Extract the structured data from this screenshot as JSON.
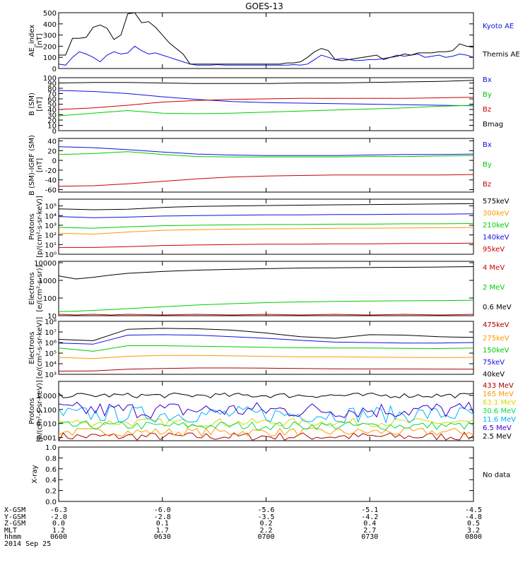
{
  "title": "GOES-13",
  "date": "2014 Sep 25",
  "colors": {
    "black": "#000000",
    "blue": "#1010e0",
    "green": "#00cc00",
    "red": "#cc0000",
    "orange": "#ff9900",
    "cyan": "#00b0ff",
    "yellow": "#d8d800",
    "lime": "#00dd44",
    "darkred": "#aa0000",
    "violet": "#3300cc"
  },
  "x_ticks": [
    0,
    30,
    60,
    90,
    120
  ],
  "footer": {
    "rows": [
      {
        "label": "X-GSM",
        "values": [
          "-6.3",
          "-6.0",
          "-5.6",
          "-5.1",
          "-4.5"
        ]
      },
      {
        "label": "Y-GSM",
        "values": [
          "-2.0",
          "-2.8",
          "-3.5",
          "-4.2",
          "-4.8"
        ]
      },
      {
        "label": "Z-GSM",
        "values": [
          "0.0",
          "0.1",
          "0.2",
          "0.4",
          "0.5"
        ]
      },
      {
        "label": "MLT",
        "values": [
          "1.2",
          "1.7",
          "2.2",
          "2.7",
          "3.2"
        ]
      },
      {
        "label": "hhmm",
        "values": [
          "0600",
          "0630",
          "0700",
          "0730",
          "0800"
        ]
      }
    ]
  },
  "chart_data": [
    {
      "type": "line",
      "ylabel": "AE_index [nT]",
      "scale": "linear",
      "ylim": [
        0,
        500
      ],
      "yticks": [
        0,
        100,
        200,
        300,
        400,
        500
      ],
      "ytick_labels": [
        "0",
        "100",
        "200",
        "300",
        "400",
        "500"
      ],
      "x": [
        0,
        2,
        4,
        6,
        8,
        10,
        12,
        14,
        16,
        18,
        20,
        22,
        24,
        26,
        28,
        30,
        32,
        34,
        36,
        38,
        40,
        42,
        44,
        46,
        48,
        50,
        52,
        54,
        56,
        58,
        60,
        62,
        64,
        66,
        68,
        70,
        72,
        74,
        76,
        78,
        80,
        82,
        84,
        86,
        88,
        90,
        92,
        94,
        96,
        98,
        100,
        102,
        104,
        106,
        108,
        110,
        112,
        114,
        116,
        118,
        120
      ],
      "series": [
        {
          "name": "Kyoto AE",
          "color": "blue",
          "values": [
            40,
            30,
            100,
            150,
            130,
            100,
            60,
            120,
            150,
            130,
            140,
            200,
            160,
            130,
            140,
            120,
            100,
            80,
            60,
            40,
            30,
            30,
            30,
            35,
            30,
            30,
            30,
            30,
            30,
            30,
            30,
            30,
            30,
            30,
            35,
            30,
            40,
            80,
            120,
            100,
            80,
            90,
            80,
            70,
            75,
            80,
            80,
            90,
            100,
            120,
            110,
            120,
            130,
            100,
            110,
            120,
            100,
            110,
            130,
            120,
            100
          ]
        },
        {
          "name": "Themis AE",
          "color": "black",
          "values": [
            120,
            120,
            270,
            270,
            280,
            370,
            390,
            360,
            260,
            300,
            490,
            500,
            410,
            420,
            370,
            300,
            230,
            180,
            130,
            40,
            40,
            40,
            40,
            40,
            40,
            40,
            40,
            40,
            40,
            40,
            40,
            40,
            40,
            50,
            50,
            60,
            100,
            150,
            180,
            160,
            80,
            70,
            80,
            90,
            100,
            110,
            120,
            80,
            100,
            110,
            130,
            120,
            140,
            140,
            140,
            150,
            150,
            160,
            220,
            200,
            190
          ]
        }
      ]
    },
    {
      "type": "line",
      "ylabel": "B (SM) [nT]",
      "scale": "linear",
      "ylim": [
        0,
        100
      ],
      "yticks": [
        0,
        10,
        20,
        30,
        40,
        50,
        60,
        70,
        80,
        90,
        100
      ],
      "ytick_labels": [
        "0",
        "10",
        "20",
        "30",
        "40",
        "50",
        "60",
        "70",
        "80",
        "90",
        "100"
      ],
      "x": [
        0,
        10,
        20,
        30,
        40,
        50,
        60,
        70,
        80,
        90,
        100,
        110,
        120
      ],
      "series": [
        {
          "name": "Bx",
          "color": "blue",
          "values": [
            76,
            74,
            70,
            64,
            59,
            55,
            53,
            52,
            51,
            50,
            49,
            48,
            47
          ]
        },
        {
          "name": "By",
          "color": "green",
          "values": [
            28,
            33,
            38,
            33,
            32,
            33,
            35,
            37,
            39,
            41,
            43,
            46,
            48
          ]
        },
        {
          "name": "Bz",
          "color": "red",
          "values": [
            40,
            43,
            48,
            54,
            57,
            59,
            60,
            61,
            61,
            61,
            61,
            62,
            63
          ]
        },
        {
          "name": "Bmag",
          "color": "black",
          "values": [
            90,
            91,
            91,
            90,
            89,
            89,
            89,
            90,
            90,
            91,
            92,
            93,
            95
          ]
        }
      ]
    },
    {
      "type": "line",
      "ylabel": "B (SM)-IGRF (SM) [nT]",
      "scale": "linear",
      "ylim": [
        -65,
        45
      ],
      "yticks": [
        -60,
        -40,
        -20,
        0,
        20,
        40
      ],
      "ytick_labels": [
        "-60",
        "-40",
        "-20",
        "0",
        "20",
        "40"
      ],
      "x": [
        0,
        10,
        20,
        30,
        40,
        50,
        60,
        70,
        80,
        90,
        100,
        110,
        120
      ],
      "series": [
        {
          "name": "Bx",
          "color": "blue",
          "values": [
            28,
            26,
            22,
            17,
            13,
            11,
            10,
            10,
            10,
            11,
            12,
            12,
            13
          ]
        },
        {
          "name": "By",
          "color": "green",
          "values": [
            12,
            14,
            18,
            12,
            8,
            7,
            7,
            7,
            7,
            8,
            8,
            9,
            10
          ]
        },
        {
          "name": "Bz",
          "color": "red",
          "values": [
            -53,
            -52,
            -48,
            -43,
            -38,
            -34,
            -32,
            -31,
            -30,
            -30,
            -30,
            -30,
            -29
          ]
        }
      ]
    },
    {
      "type": "line",
      "ylabel": "Protons [p/(cm²-s-sr-keV)]",
      "scale": "log",
      "ylim": [
        1,
        500000
      ],
      "yticks": [
        1,
        10,
        100,
        1000,
        10000,
        100000
      ],
      "ytick_labels": [
        "10⁰",
        "10¹",
        "10²",
        "10³",
        "10⁴",
        "10⁵"
      ],
      "x": [
        0,
        10,
        20,
        30,
        40,
        50,
        60,
        70,
        80,
        90,
        100,
        110,
        120
      ],
      "series": [
        {
          "name": "575keV",
          "color": "black",
          "values": [
            50000,
            40000,
            45000,
            70000,
            90000,
            100000,
            110000,
            120000,
            130000,
            140000,
            150000,
            160000,
            170000
          ]
        },
        {
          "name": "300keV",
          "color": "orange",
          "values": [
            150,
            120,
            200,
            300,
            350,
            400,
            420,
            450,
            480,
            500,
            520,
            550,
            600
          ]
        },
        {
          "name": "210keV",
          "color": "green",
          "values": [
            600,
            500,
            700,
            900,
            1000,
            1100,
            1200,
            1200,
            1300,
            1300,
            1400,
            1400,
            1500
          ]
        },
        {
          "name": "140keV",
          "color": "blue",
          "values": [
            8000,
            6000,
            7000,
            9000,
            10000,
            11000,
            12000,
            12000,
            13000,
            13000,
            14000,
            14000,
            15000
          ]
        },
        {
          "name": "95keV",
          "color": "red",
          "values": [
            5,
            5,
            6,
            8,
            9,
            10,
            11,
            11,
            12,
            12,
            13,
            13,
            14
          ]
        }
      ]
    },
    {
      "type": "line",
      "ylabel": "Electrons [e/(cm²-s-sr)]",
      "scale": "log",
      "ylim": [
        10,
        12000
      ],
      "yticks": [
        10,
        100,
        1000,
        10000
      ],
      "ytick_labels": [
        "10",
        "100",
        "1000",
        "10000"
      ],
      "x": [
        0,
        5,
        10,
        15,
        20,
        30,
        40,
        50,
        60,
        70,
        80,
        90,
        100,
        110,
        120
      ],
      "series": [
        {
          "name": "4 MeV",
          "color": "red",
          "values": [
            12,
            11,
            12,
            11,
            12,
            11,
            12,
            11,
            12,
            11,
            12,
            11,
            12,
            11,
            12
          ]
        },
        {
          "name": "2 MeV",
          "color": "green",
          "values": [
            17,
            18,
            20,
            22,
            25,
            32,
            40,
            48,
            55,
            60,
            65,
            68,
            70,
            72,
            75
          ]
        },
        {
          "name": "0.6 MeV",
          "color": "black",
          "values": [
            1800,
            1200,
            1500,
            2000,
            2500,
            3200,
            3800,
            4200,
            4600,
            5000,
            5200,
            5400,
            5500,
            5700,
            6000
          ]
        }
      ]
    },
    {
      "type": "line",
      "ylabel": "Electrons [e/(cm²-s-sr-keV)]",
      "scale": "log",
      "ylim": [
        1000,
        100000000
      ],
      "yticks": [
        1000,
        10000,
        100000,
        1000000,
        10000000,
        100000000
      ],
      "ytick_labels": [
        "10³",
        "10⁴",
        "10⁵",
        "10⁶",
        "10⁷",
        "10⁸"
      ],
      "x": [
        0,
        10,
        20,
        30,
        40,
        50,
        60,
        70,
        80,
        90,
        100,
        110,
        120
      ],
      "series": [
        {
          "name": "475keV",
          "color": "darkred",
          "values": [
            2000,
            2100,
            3000,
            3500,
            4000,
            4000,
            3800,
            3500,
            3300,
            3200,
            3200,
            3100,
            3000
          ]
        },
        {
          "name": "275keV",
          "color": "orange",
          "values": [
            40000,
            30000,
            50000,
            60000,
            60000,
            55000,
            50000,
            45000,
            45000,
            42000,
            40000,
            38000,
            40000
          ]
        },
        {
          "name": "150keV",
          "color": "green",
          "values": [
            300000,
            150000,
            500000,
            500000,
            450000,
            400000,
            350000,
            320000,
            300000,
            300000,
            280000,
            270000,
            300000
          ]
        },
        {
          "name": "75keV",
          "color": "blue",
          "values": [
            900000,
            700000,
            5000000,
            5500000,
            5000000,
            3500000,
            2500000,
            1600000,
            1100000,
            1000000,
            900000,
            900000,
            1000000
          ]
        },
        {
          "name": "40keV",
          "color": "black",
          "values": [
            2000000,
            1500000,
            18000000,
            22000000,
            20000000,
            15000000,
            8000000,
            3500000,
            2500000,
            5500000,
            5000000,
            3500000,
            3000000
          ]
        }
      ]
    },
    {
      "type": "line",
      "ylabel": "Protons [p/(cm²-s-sr-keV)]",
      "scale": "log",
      "ylim": [
        0.0006,
        10
      ],
      "yticks": [
        0.001,
        0.01,
        0.1,
        1
      ],
      "ytick_labels": [
        "0.001",
        "0.010",
        "0.100",
        "1.000"
      ],
      "noisy": true,
      "series": [
        {
          "name": "433 MeV",
          "color": "darkred",
          "level": 0.0012
        },
        {
          "name": "165 MeV",
          "color": "orange",
          "level": 0.0025
        },
        {
          "name": "63.1 MeV",
          "color": "yellow",
          "level": 0.012
        },
        {
          "name": "30.6 MeV",
          "color": "lime",
          "level": 0.007
        },
        {
          "name": "11.6 MeV",
          "color": "cyan",
          "level": 0.045
        },
        {
          "name": "6.5 MeV",
          "color": "violet",
          "level": 0.09
        },
        {
          "name": "2.5 MeV",
          "color": "black",
          "level": 1.0
        }
      ]
    },
    {
      "type": "line",
      "ylabel": "X-ray",
      "scale": "linear",
      "ylim": [
        0,
        1
      ],
      "yticks": [
        0,
        0.2,
        0.4,
        0.6,
        0.8,
        1.0
      ],
      "ytick_labels": [
        "0.0",
        "0.2",
        "0.4",
        "0.6",
        "0.8",
        "1.0"
      ],
      "note": "No data",
      "series": []
    }
  ]
}
